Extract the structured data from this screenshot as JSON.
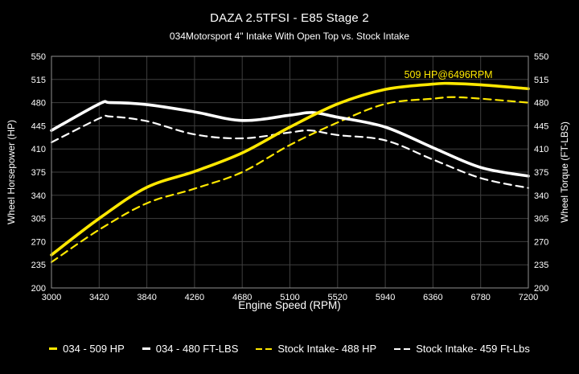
{
  "chart_data": {
    "type": "line",
    "title": "DAZA 2.5TFSI - E85 Stage 2",
    "subtitle": "034Motorsport 4\" Intake With Open Top vs. Stock Intake",
    "xlabel": "Engine Speed (RPM)",
    "ylabel_left": "Wheel Horsepower (HP)",
    "ylabel_right": "Wheel Torque (FT-LBS)",
    "xlim": [
      3000,
      7200
    ],
    "ylim": [
      200,
      550
    ],
    "xticks": [
      3000,
      3420,
      3840,
      4260,
      4680,
      5100,
      5520,
      5940,
      6360,
      6780,
      7200
    ],
    "yticks": [
      200,
      235,
      270,
      305,
      340,
      375,
      410,
      445,
      480,
      515,
      550
    ],
    "grid": true,
    "legend_position": "bottom",
    "colors": {
      "background": "#000000",
      "text": "#ffffff",
      "accent_yellow": "#ffe800",
      "line_white": "#ffffff",
      "grid": "#3f3f3f",
      "border": "#8f8f8f"
    },
    "annotation": {
      "text": "509 HP@6496RPM",
      "x": 6496,
      "y": 517
    },
    "series": [
      {
        "name": "034 - 509 HP",
        "color": "#ffe800",
        "style": "solid",
        "axis": "left",
        "points": [
          [
            3000,
            250
          ],
          [
            3420,
            305
          ],
          [
            3840,
            352
          ],
          [
            4260,
            376
          ],
          [
            4680,
            404
          ],
          [
            5100,
            443
          ],
          [
            5520,
            478
          ],
          [
            5940,
            500
          ],
          [
            6360,
            508
          ],
          [
            6500,
            509
          ],
          [
            6780,
            507
          ],
          [
            7200,
            501
          ]
        ]
      },
      {
        "name": "034 - 480 FT-LBS",
        "color": "#ffffff",
        "style": "solid",
        "axis": "right",
        "points": [
          [
            3000,
            438
          ],
          [
            3420,
            478
          ],
          [
            3520,
            480
          ],
          [
            3840,
            477
          ],
          [
            4260,
            466
          ],
          [
            4680,
            453
          ],
          [
            5100,
            461
          ],
          [
            5300,
            465
          ],
          [
            5520,
            458
          ],
          [
            5940,
            443
          ],
          [
            6360,
            412
          ],
          [
            6780,
            382
          ],
          [
            7200,
            369
          ]
        ]
      },
      {
        "name": "Stock Intake- 488 HP",
        "color": "#ffe800",
        "style": "dashed",
        "axis": "left",
        "points": [
          [
            3000,
            239
          ],
          [
            3420,
            288
          ],
          [
            3840,
            328
          ],
          [
            4260,
            350
          ],
          [
            4680,
            375
          ],
          [
            5100,
            416
          ],
          [
            5520,
            450
          ],
          [
            5940,
            478
          ],
          [
            6360,
            486
          ],
          [
            6600,
            488
          ],
          [
            7200,
            480
          ]
        ]
      },
      {
        "name": "Stock Intake- 459 Ft-Lbs",
        "color": "#ffffff",
        "style": "dashed",
        "axis": "right",
        "points": [
          [
            3000,
            420
          ],
          [
            3420,
            456
          ],
          [
            3520,
            459
          ],
          [
            3840,
            452
          ],
          [
            4260,
            432
          ],
          [
            4680,
            426
          ],
          [
            5100,
            435
          ],
          [
            5280,
            438
          ],
          [
            5520,
            431
          ],
          [
            5940,
            423
          ],
          [
            6360,
            394
          ],
          [
            6780,
            366
          ],
          [
            7200,
            351
          ]
        ]
      }
    ]
  }
}
